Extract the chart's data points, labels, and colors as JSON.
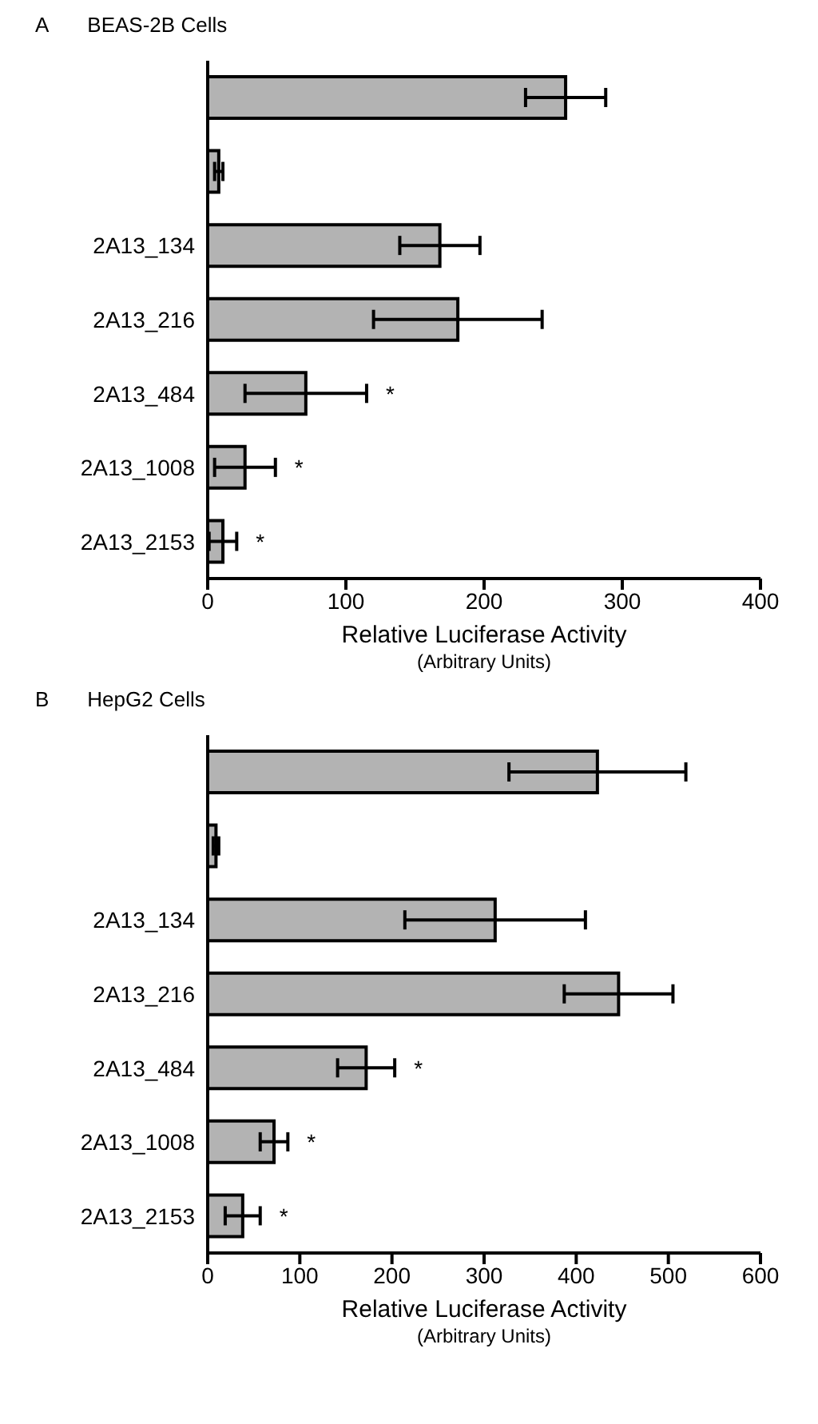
{
  "chart_data": [
    {
      "type": "bar",
      "orientation": "horizontal",
      "title": "BEAS-2B Cells",
      "xlabel": "Relative Luciferase Activity\n(Arbitrary Units)",
      "categories": [
        null,
        null,
        "2A13_134",
        "2A13_216",
        "2A13_484",
        "2A13_1008",
        "2A13_2153"
      ],
      "values": [
        259,
        8,
        168,
        181,
        71,
        27,
        11
      ],
      "errors": [
        29,
        3,
        29,
        61,
        44,
        22,
        10
      ],
      "color": "#b3b3b3",
      "xlim": [
        0,
        400
      ],
      "xticks": [
        0,
        100,
        200,
        300,
        400
      ],
      "grid": false,
      "legend": false,
      "annotations": [
        "A",
        {
          "text": "*",
          "x": 115,
          "y": "2A13_484"
        },
        {
          "text": "*",
          "x": 49,
          "y": "2A13_1008"
        },
        {
          "text": "*",
          "x": 21,
          "y": "2A13_2153"
        }
      ]
    },
    {
      "type": "bar",
      "orientation": "horizontal",
      "title": "HepG2 Cells",
      "xlabel": "Relative Luciferase Activity\n(Arbitrary Units)",
      "categories": [
        null,
        null,
        "2A13_134",
        "2A13_216",
        "2A13_484",
        "2A13_1008",
        "2A13_2153"
      ],
      "values": [
        423,
        9,
        312,
        446,
        172,
        72,
        38
      ],
      "errors": [
        96,
        3,
        98,
        59,
        31,
        15,
        19
      ],
      "color": "#b3b3b3",
      "xlim": [
        0,
        600
      ],
      "xticks": [
        0,
        100,
        200,
        300,
        400,
        500,
        600
      ],
      "grid": false,
      "legend": false,
      "annotations": [
        "B",
        {
          "text": "*",
          "x": 203,
          "y": "2A13_484"
        },
        {
          "text": "*",
          "x": 87,
          "y": "2A13_1008"
        },
        {
          "text": "*",
          "x": 57,
          "y": "2A13_2153"
        }
      ]
    }
  ]
}
